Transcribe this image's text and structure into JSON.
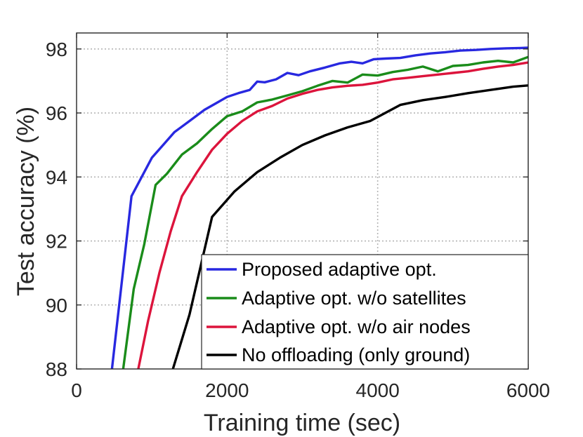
{
  "chart_data": {
    "type": "line",
    "title": "",
    "xlabel": "Training time (sec)",
    "ylabel": "Test accuracy (%)",
    "xlim": [
      0,
      6000
    ],
    "ylim": [
      88,
      98.5
    ],
    "grid": true,
    "legend_position": "bottom-right",
    "x_ticks": [
      0,
      2000,
      4000,
      6000
    ],
    "x_tick_labels": [
      "0",
      "2000",
      "4000",
      "6000"
    ],
    "y_ticks": [
      88,
      90,
      92,
      94,
      96,
      98
    ],
    "y_tick_labels": [
      "88",
      "90",
      "92",
      "94",
      "96",
      "98"
    ],
    "series": [
      {
        "name": "Proposed adaptive opt.",
        "color": "#2828e0",
        "x": [
          470,
          730,
          1000,
          1150,
          1300,
          1500,
          1700,
          1850,
          2000,
          2150,
          2300,
          2400,
          2500,
          2650,
          2800,
          2950,
          3100,
          3300,
          3500,
          3650,
          3800,
          3950,
          4100,
          4300,
          4500,
          4700,
          4900,
          5100,
          5300,
          5500,
          5700,
          5900,
          6000
        ],
        "y": [
          88.0,
          93.4,
          94.6,
          95.0,
          95.4,
          95.75,
          96.1,
          96.3,
          96.5,
          96.62,
          96.72,
          96.98,
          96.96,
          97.05,
          97.25,
          97.18,
          97.3,
          97.42,
          97.55,
          97.6,
          97.55,
          97.68,
          97.7,
          97.72,
          97.8,
          97.86,
          97.9,
          97.95,
          97.97,
          98.0,
          98.02,
          98.03,
          98.04
        ]
      },
      {
        "name": "Adaptive opt. w/o satellites",
        "color": "#1a8c1a",
        "x": [
          620,
          760,
          900,
          1050,
          1200,
          1400,
          1600,
          1800,
          2000,
          2200,
          2400,
          2600,
          2800,
          3000,
          3200,
          3400,
          3600,
          3800,
          4000,
          4200,
          4400,
          4600,
          4800,
          5000,
          5200,
          5400,
          5600,
          5800,
          6000
        ],
        "y": [
          88.0,
          90.5,
          91.9,
          93.75,
          94.1,
          94.7,
          95.05,
          95.5,
          95.9,
          96.05,
          96.33,
          96.42,
          96.55,
          96.68,
          96.85,
          97.0,
          96.95,
          97.2,
          97.17,
          97.28,
          97.35,
          97.45,
          97.3,
          97.47,
          97.5,
          97.58,
          97.63,
          97.58,
          97.75
        ]
      },
      {
        "name": "Adaptive opt. w/o air nodes",
        "color": "#dc143c",
        "x": [
          820,
          950,
          1100,
          1250,
          1400,
          1600,
          1800,
          2000,
          2200,
          2400,
          2600,
          2800,
          3000,
          3200,
          3400,
          3600,
          3800,
          4000,
          4200,
          4400,
          4600,
          4800,
          5000,
          5200,
          5400,
          5600,
          5800,
          6000
        ],
        "y": [
          88.0,
          89.5,
          91.0,
          92.3,
          93.4,
          94.15,
          94.85,
          95.35,
          95.75,
          96.05,
          96.22,
          96.45,
          96.6,
          96.72,
          96.8,
          96.85,
          96.88,
          96.95,
          97.05,
          97.1,
          97.15,
          97.2,
          97.25,
          97.3,
          97.38,
          97.45,
          97.5,
          97.58
        ]
      },
      {
        "name": "No offloading (only ground)",
        "color": "#000000",
        "x": [
          1280,
          1500,
          1800,
          2100,
          2400,
          2700,
          3000,
          3300,
          3600,
          3900,
          4300,
          4600,
          4900,
          5200,
          5500,
          5800,
          6000
        ],
        "y": [
          88.0,
          89.7,
          92.75,
          93.55,
          94.15,
          94.6,
          95.0,
          95.3,
          95.55,
          95.75,
          96.25,
          96.4,
          96.5,
          96.62,
          96.72,
          96.82,
          96.86
        ]
      }
    ]
  }
}
